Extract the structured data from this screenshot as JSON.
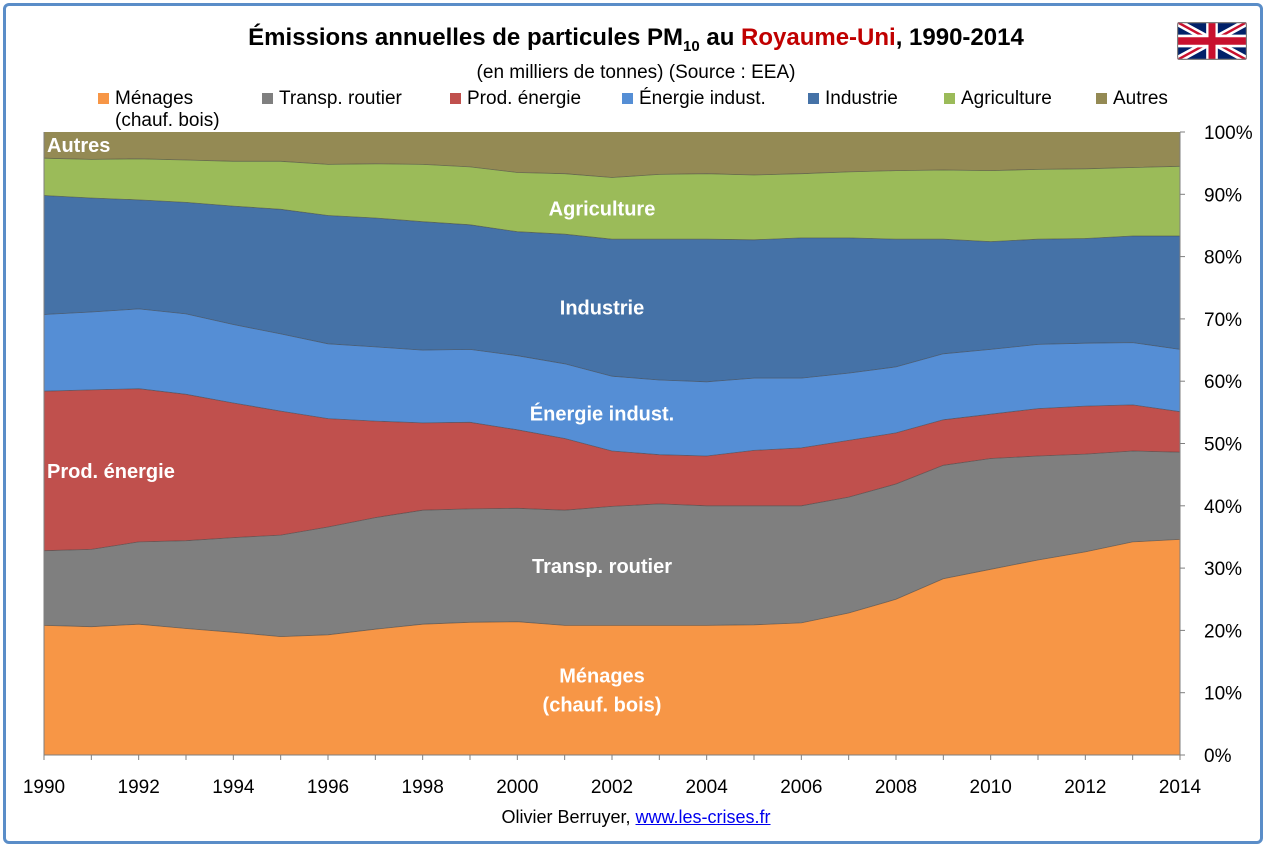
{
  "title": {
    "prefix": "Émissions annuelles de particules PM",
    "subscript": "10",
    "middle": " au ",
    "country": "Royaume-Uni",
    "suffix": ", 1990-2014"
  },
  "subtitle": "(en milliers de tonnes) (Source : EEA)",
  "credit": {
    "author": "Olivier Berruyer, ",
    "link": "www.les-crises.fr"
  },
  "flag_icon": "united-kingdom-flag",
  "chart_data": {
    "type": "area",
    "stacked": true,
    "percent": true,
    "x": [
      1990,
      1991,
      1992,
      1993,
      1994,
      1995,
      1996,
      1997,
      1998,
      1999,
      2000,
      2001,
      2002,
      2003,
      2004,
      2005,
      2006,
      2007,
      2008,
      2009,
      2010,
      2011,
      2012,
      2013,
      2014
    ],
    "x_ticks": [
      "1990",
      "1992",
      "1994",
      "1996",
      "1998",
      "2000",
      "2002",
      "2004",
      "2006",
      "2008",
      "2010",
      "2012",
      "2014"
    ],
    "y_ticks": [
      "0%",
      "10%",
      "20%",
      "30%",
      "40%",
      "50%",
      "60%",
      "70%",
      "80%",
      "90%",
      "100%"
    ],
    "ylim": [
      0,
      100
    ],
    "grid": false,
    "legend_position": "top",
    "series": [
      {
        "name": "Ménages (chauf. bois)",
        "legend": [
          "Ménages",
          "(chauf. bois)"
        ],
        "label": [
          "Ménages",
          "(chauf. bois)"
        ],
        "color": "#f79646",
        "values": [
          20.8,
          20.6,
          21.0,
          20.3,
          19.7,
          19.0,
          19.3,
          20.2,
          21.0,
          21.3,
          21.4,
          20.8,
          20.8,
          20.8,
          20.8,
          20.9,
          21.2,
          22.8,
          25.0,
          28.3,
          29.8,
          31.3,
          32.6,
          34.2,
          34.6
        ]
      },
      {
        "name": "Transp. routier",
        "legend": [
          "Transp. routier"
        ],
        "label": [
          "Transp. routier"
        ],
        "color": "#7f7f7f",
        "values": [
          12.0,
          12.4,
          13.2,
          14.1,
          15.2,
          16.3,
          17.3,
          17.9,
          18.3,
          18.2,
          18.2,
          18.5,
          19.1,
          19.5,
          19.2,
          19.1,
          18.8,
          18.6,
          18.5,
          18.2,
          17.8,
          16.7,
          15.7,
          14.6,
          14.0
        ]
      },
      {
        "name": "Prod. énergie",
        "legend": [
          "Prod. énergie"
        ],
        "label": [
          "Prod. énergie"
        ],
        "color": "#c0504d",
        "values": [
          25.6,
          25.6,
          24.6,
          23.5,
          21.6,
          19.9,
          17.4,
          15.5,
          14.0,
          13.9,
          12.6,
          11.5,
          8.9,
          7.9,
          8.0,
          8.9,
          9.3,
          9.1,
          8.2,
          7.3,
          7.1,
          7.6,
          7.7,
          7.4,
          6.5
        ]
      },
      {
        "name": "Énergie indust.",
        "legend": [
          "Énergie indust."
        ],
        "label": [
          "Énergie indust."
        ],
        "color": "#558ed5",
        "values": [
          12.3,
          12.5,
          12.8,
          12.9,
          12.6,
          12.4,
          12.0,
          11.9,
          11.7,
          11.7,
          11.9,
          12.0,
          12.0,
          12.0,
          11.9,
          11.6,
          11.2,
          10.8,
          10.6,
          10.6,
          10.4,
          10.3,
          10.1,
          10.0,
          10.0
        ]
      },
      {
        "name": "Industrie",
        "legend": [
          "Industrie"
        ],
        "label": [
          "Industrie"
        ],
        "color": "#4572a7",
        "values": [
          19.1,
          18.3,
          17.5,
          17.9,
          19.0,
          20.0,
          20.6,
          20.7,
          20.6,
          20.0,
          19.9,
          20.8,
          22.0,
          22.6,
          22.9,
          22.2,
          22.5,
          21.7,
          20.5,
          18.4,
          17.3,
          16.9,
          16.8,
          17.1,
          18.2
        ]
      },
      {
        "name": "Agriculture",
        "legend": [
          "Agriculture"
        ],
        "label": [
          "Agriculture"
        ],
        "color": "#9bbb59",
        "values": [
          6.0,
          6.2,
          6.6,
          6.8,
          7.2,
          7.7,
          8.2,
          8.7,
          9.2,
          9.3,
          9.5,
          9.7,
          9.9,
          10.4,
          10.5,
          10.4,
          10.3,
          10.6,
          11.0,
          11.1,
          11.4,
          11.2,
          11.2,
          11.0,
          11.2
        ]
      },
      {
        "name": "Autres",
        "legend": [
          "Autres"
        ],
        "label": [
          "Autres"
        ],
        "color": "#948a54",
        "values": [
          4.2,
          4.4,
          4.3,
          4.5,
          4.7,
          4.7,
          5.2,
          5.1,
          5.2,
          5.6,
          6.5,
          6.7,
          7.3,
          6.8,
          6.7,
          6.9,
          6.7,
          6.4,
          6.2,
          6.1,
          6.2,
          6.0,
          5.9,
          5.7,
          5.5
        ]
      }
    ]
  }
}
